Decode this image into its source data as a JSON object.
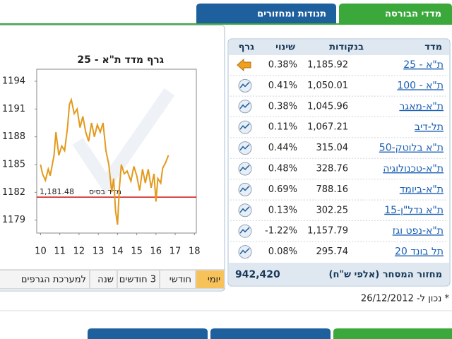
{
  "tabs": [
    "מדדי הבורסה",
    "תנודות ומחזורים"
  ],
  "table": {
    "headers": [
      "מדד",
      "בנקודות",
      "שינוי",
      "גרף"
    ],
    "rows": [
      {
        "name": "ת\"א - 25",
        "points": "1,185.92",
        "change": "0.38%",
        "color": "#2a8a1a"
      },
      {
        "name": "ת\"א - 100",
        "points": "1,050.01",
        "change": "0.41%",
        "color": "#2a8a1a"
      },
      {
        "name": "ת\"א-מאגר",
        "points": "1,045.96",
        "change": "0.38%",
        "color": "#2a8a1a"
      },
      {
        "name": "תל-דיב",
        "points": "1,067.21",
        "change": "0.11%",
        "color": "#2a8a1a"
      },
      {
        "name": "ת\"א בלוטק-50",
        "points": "315.04",
        "change": "0.44%",
        "color": "#2a8a1a"
      },
      {
        "name": "ת\"א-טכנולוגיה",
        "points": "328.76",
        "change": "0.48%",
        "color": "#2a8a1a"
      },
      {
        "name": "ת\"א-ביומד",
        "points": "788.16",
        "change": "0.69%",
        "color": "#2a8a1a"
      },
      {
        "name": "ת\"א נדל\"ן-15",
        "points": "302.25",
        "change": "0.13%",
        "color": "#2a8a1a"
      },
      {
        "name": "ת\"א-נפט וגז",
        "points": "1,157.79",
        "change": "-1.22%",
        "color": "#d01010"
      },
      {
        "name": "תל בונד 20",
        "points": "295.74",
        "change": "0.08%",
        "color": "#2a8a1a"
      }
    ],
    "footer_label": "מחזור המסחר (אלפי ש\"ח)",
    "footer_value": "942,420"
  },
  "note": "* נכון ל- 26/12/2012",
  "buttons": [
    "יומי",
    "חודשי",
    "3 חודשים",
    "שנה",
    "למערכת הגרפים"
  ],
  "chart_data": {
    "type": "line",
    "title": "גרף מדד ת\"א - 25",
    "color": "#e39a1c",
    "x": [
      10,
      10.1,
      10.25,
      10.4,
      10.5,
      10.7,
      10.8,
      10.95,
      11.1,
      11.25,
      11.4,
      11.5,
      11.6,
      11.75,
      11.9,
      12.05,
      12.2,
      12.35,
      12.5,
      12.65,
      12.8,
      12.95,
      13.1,
      13.25,
      13.4,
      13.55,
      13.7,
      13.8,
      13.9,
      14,
      14.1,
      14.2,
      14.35,
      14.5,
      14.7,
      14.85,
      15,
      15.15,
      15.3,
      15.45,
      15.6,
      15.75,
      15.9,
      16,
      16.1,
      16.25,
      16.35,
      16.5,
      16.65
    ],
    "values": [
      1185,
      1184,
      1183.3,
      1184.5,
      1183.8,
      1186,
      1188.5,
      1186,
      1187,
      1186.5,
      1189,
      1191.5,
      1192,
      1190.5,
      1191,
      1189,
      1190.2,
      1188.5,
      1187.5,
      1189.5,
      1188,
      1189.3,
      1188.5,
      1189.5,
      1186.5,
      1185,
      1182,
      1183.5,
      1180,
      1178.5,
      1182.5,
      1185,
      1184,
      1184.3,
      1183.2,
      1184.8,
      1183.8,
      1182.2,
      1184.5,
      1183,
      1184.5,
      1182.5,
      1184,
      1181,
      1183.5,
      1183,
      1184.6,
      1185.2,
      1186
    ],
    "xlim": [
      9.8,
      18.1
    ],
    "xticks": [
      10,
      11,
      12,
      13,
      14,
      15,
      16,
      17,
      18
    ],
    "ylim": [
      1177.6,
      1195.3
    ],
    "yticks": [
      1194,
      1191,
      1188,
      1185,
      1182,
      1179
    ],
    "baseline": {
      "value": 1181.48,
      "label": "1,181.48"
    },
    "baseline_label": "מדד בסיס",
    "baseline_color": "#d01010"
  }
}
